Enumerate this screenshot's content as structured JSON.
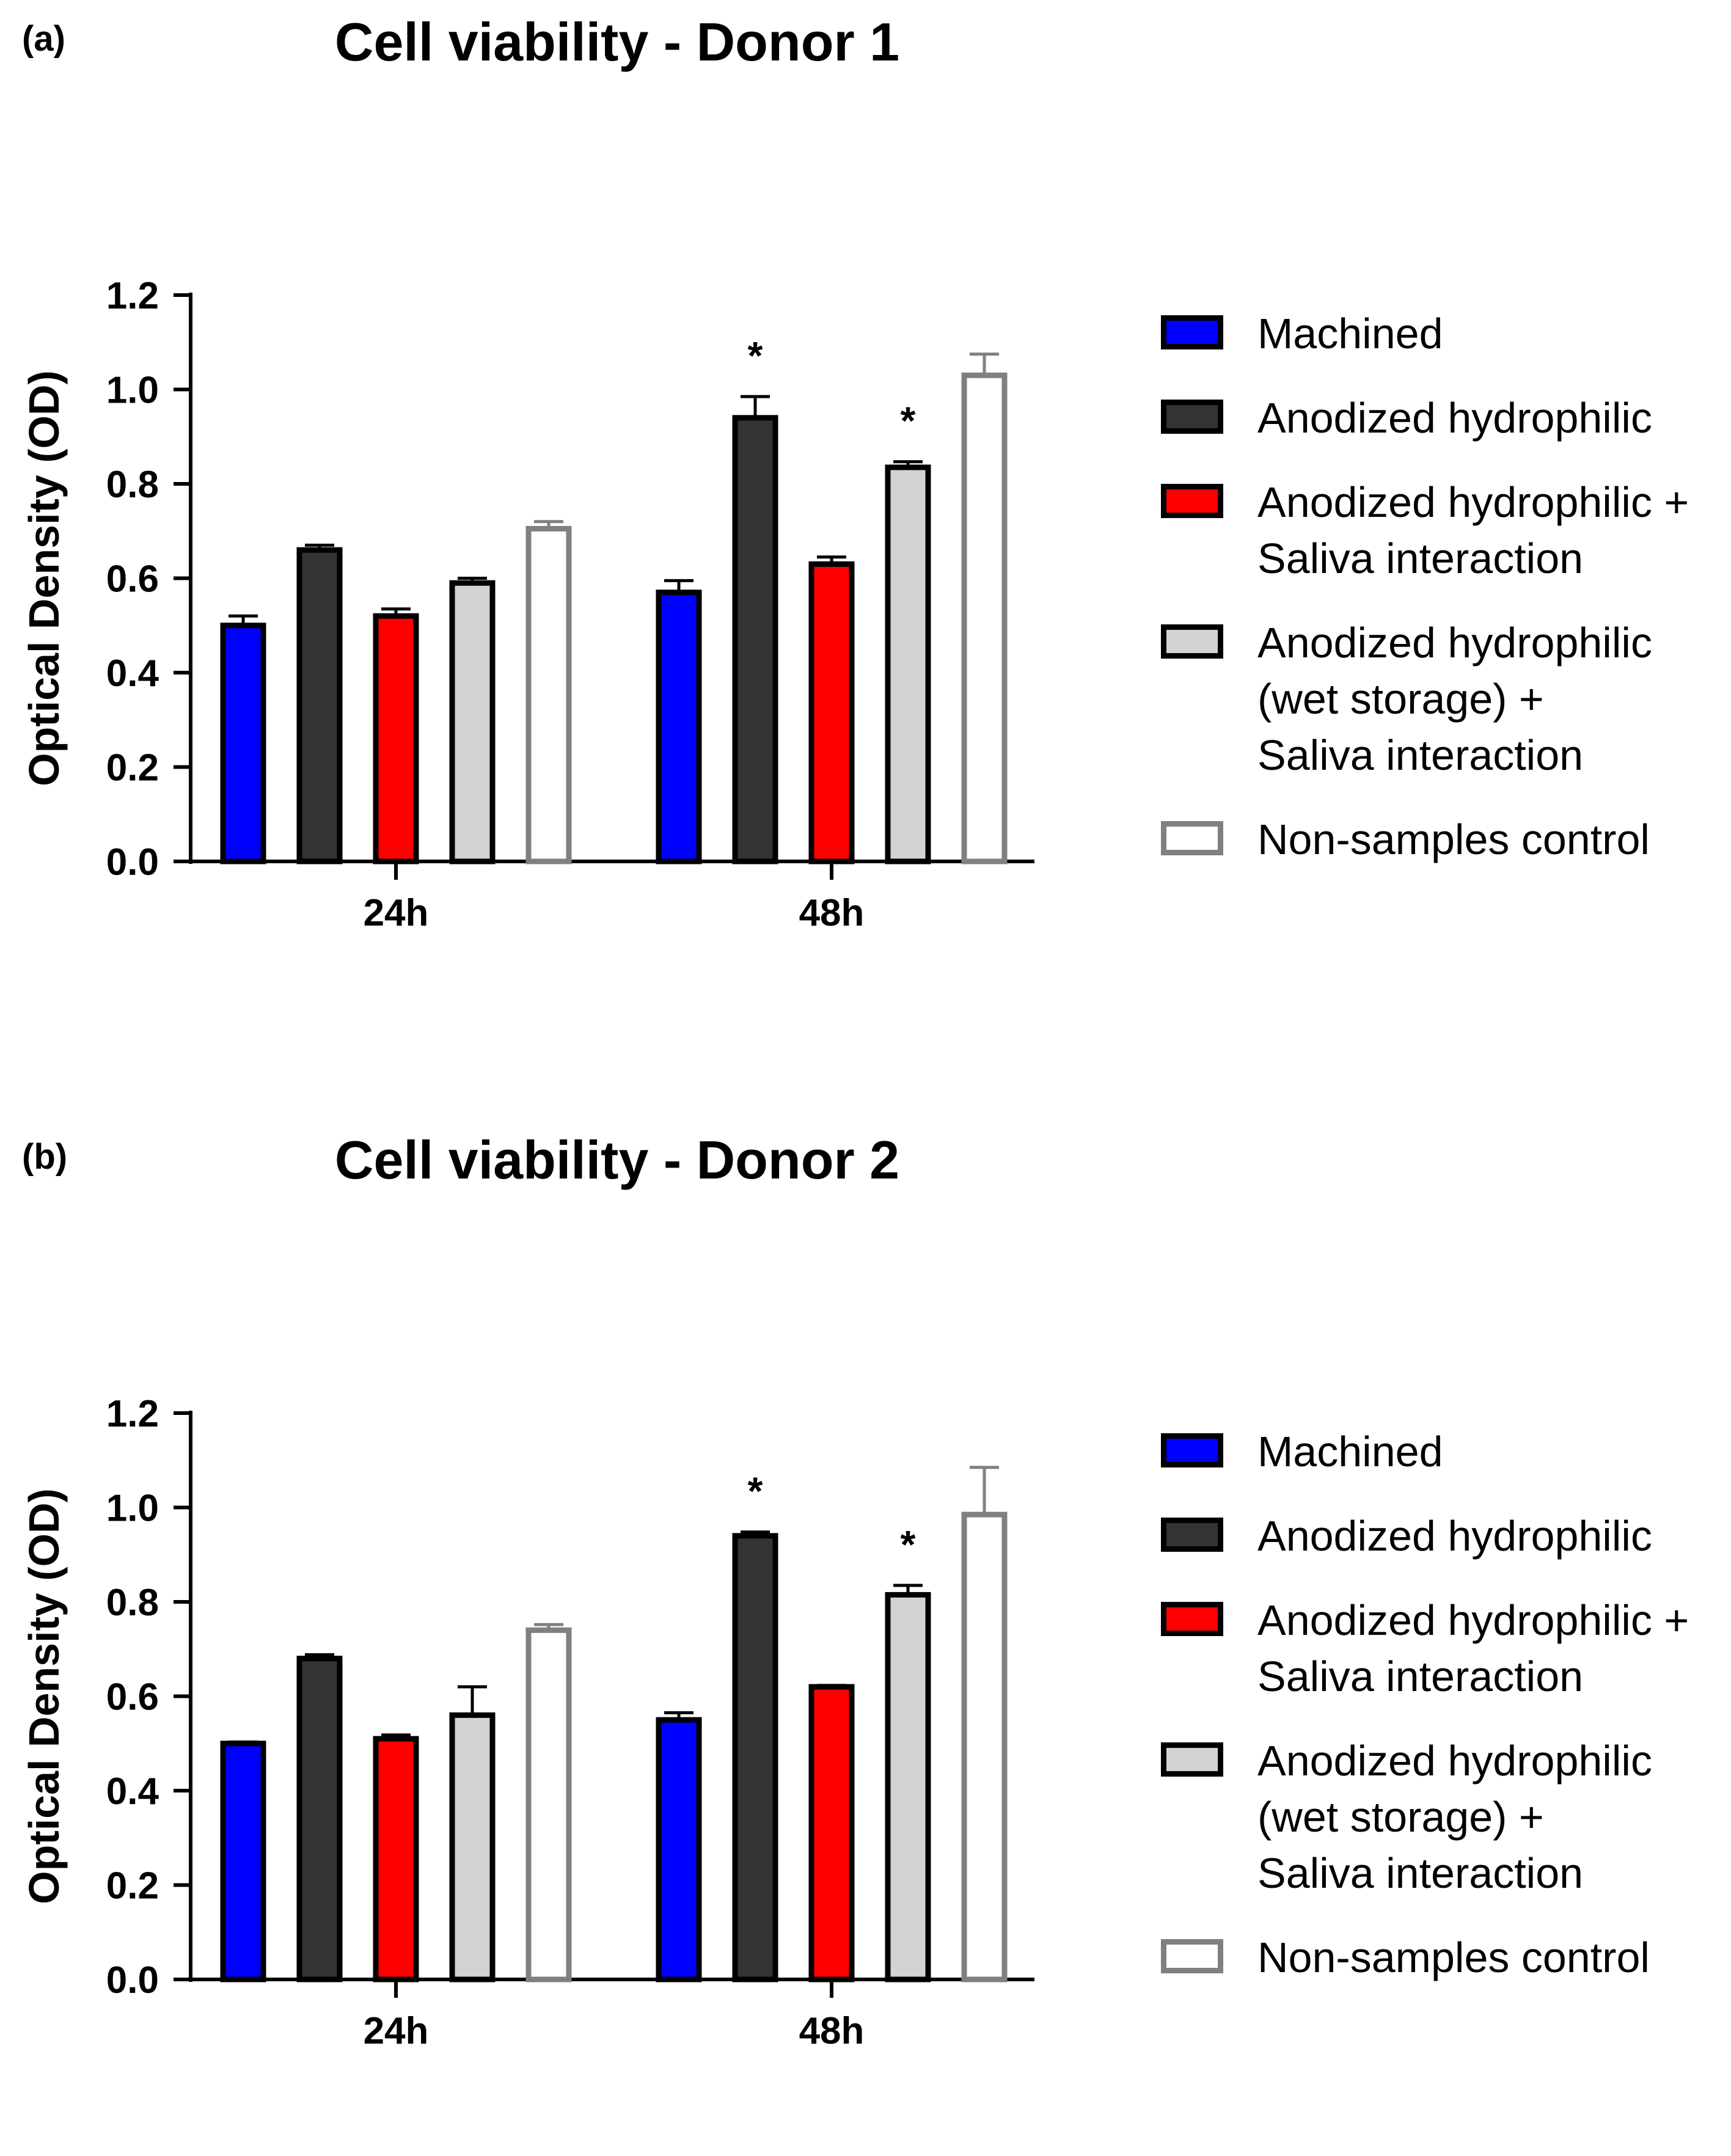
{
  "chart_data": [
    {
      "type": "bar",
      "panel_label": "(a)",
      "title": "Cell viability - Donor 1",
      "xlabel": "",
      "ylabel": "Optical Density (OD)",
      "ylim": [
        0,
        1.2
      ],
      "yticks": [
        "0.0",
        "0.2",
        "0.4",
        "0.6",
        "0.8",
        "1.0",
        "1.2"
      ],
      "categories": [
        "24h",
        "48h"
      ],
      "series": [
        {
          "name": "Machined",
          "values": [
            0.5,
            0.57
          ],
          "errors": [
            0.02,
            0.025
          ],
          "significance": [
            "",
            ""
          ]
        },
        {
          "name": "Anodized hydrophilic",
          "values": [
            0.66,
            0.94
          ],
          "errors": [
            0.01,
            0.045
          ],
          "significance": [
            "",
            "*"
          ]
        },
        {
          "name": "Anodized hydrophilic + Saliva interaction",
          "values": [
            0.52,
            0.63
          ],
          "errors": [
            0.015,
            0.015
          ],
          "significance": [
            "",
            ""
          ]
        },
        {
          "name": "Anodized hydrophilic (wet storage) + Saliva interaction",
          "values": [
            0.59,
            0.835
          ],
          "errors": [
            0.01,
            0.012
          ],
          "significance": [
            "",
            "*"
          ]
        },
        {
          "name": "Non-samples control",
          "values": [
            0.705,
            1.03
          ],
          "errors": [
            0.015,
            0.045
          ],
          "significance": [
            "",
            ""
          ]
        }
      ]
    },
    {
      "type": "bar",
      "panel_label": "(b)",
      "title": "Cell viability - Donor 2",
      "xlabel": "",
      "ylabel": "Optical Density (OD)",
      "ylim": [
        0,
        1.2
      ],
      "yticks": [
        "0.0",
        "0.2",
        "0.4",
        "0.6",
        "0.8",
        "1.0",
        "1.2"
      ],
      "categories": [
        "24h",
        "48h"
      ],
      "series": [
        {
          "name": "Machined",
          "values": [
            0.5,
            0.55
          ],
          "errors": [
            0.003,
            0.015
          ],
          "significance": [
            "",
            ""
          ]
        },
        {
          "name": "Anodized hydrophilic",
          "values": [
            0.68,
            0.94
          ],
          "errors": [
            0.008,
            0.008
          ],
          "significance": [
            "",
            "*"
          ]
        },
        {
          "name": "Anodized hydrophilic + Saliva interaction",
          "values": [
            0.51,
            0.62
          ],
          "errors": [
            0.008,
            0.003
          ],
          "significance": [
            "",
            ""
          ]
        },
        {
          "name": "Anodized hydrophilic (wet storage) + Saliva interaction",
          "values": [
            0.56,
            0.815
          ],
          "errors": [
            0.06,
            0.02
          ],
          "significance": [
            "",
            "*"
          ]
        },
        {
          "name": "Non-samples control",
          "values": [
            0.74,
            0.985
          ],
          "errors": [
            0.012,
            0.1
          ],
          "significance": [
            "",
            ""
          ]
        }
      ]
    }
  ],
  "legend": {
    "items": [
      {
        "lines": [
          "Machined"
        ],
        "fill": "#0000ff",
        "stroke": "#000000"
      },
      {
        "lines": [
          "Anodized hydrophilic"
        ],
        "fill": "#333333",
        "stroke": "#000000"
      },
      {
        "lines": [
          "Anodized hydrophilic +",
          "Saliva interaction"
        ],
        "fill": "#ff0000",
        "stroke": "#000000"
      },
      {
        "lines": [
          "Anodized hydrophilic",
          "(wet storage) +",
          "Saliva interaction"
        ],
        "fill": "#d3d3d3",
        "stroke": "#000000"
      },
      {
        "lines": [
          "Non-samples control"
        ],
        "fill": "#ffffff",
        "stroke": "#808080"
      }
    ]
  }
}
